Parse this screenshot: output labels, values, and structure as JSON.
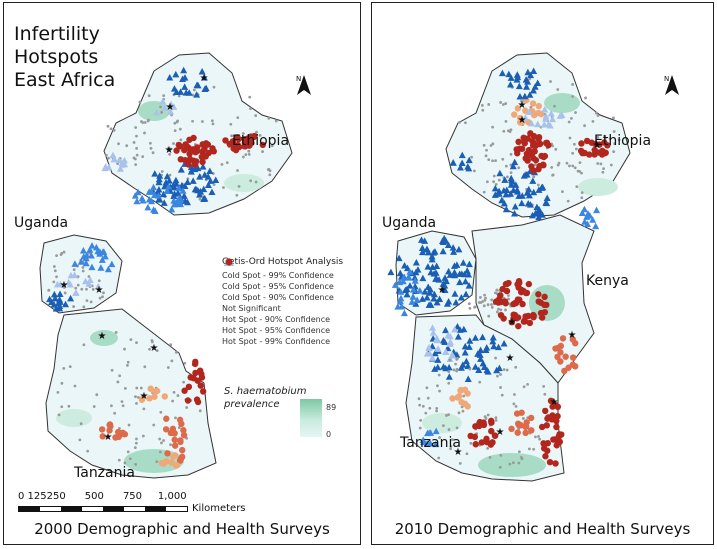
{
  "left_panel": {
    "title_lines": [
      "Infertility",
      "Hotspots",
      "East Africa"
    ],
    "caption": "2000 Demographic and Health Surveys",
    "countries": {
      "ethiopia": "Ethiopia",
      "uganda": "Uganda",
      "tanzania": "Tanzania"
    },
    "north": "N"
  },
  "right_panel": {
    "caption": "2010 Demographic and Health Surveys",
    "countries": {
      "ethiopia": "Ethiopia",
      "uganda": "Uganda",
      "kenya": "Kenya",
      "tanzania": "Tanzania"
    },
    "north": "N"
  },
  "legend": {
    "title": "Getis-Ord Hotspot Analysis",
    "items": [
      {
        "label": "Cold Spot - 99% Confidence",
        "shape": "triangle",
        "color": "#1a5fb4"
      },
      {
        "label": "Cold Spot - 95% Confidence",
        "shape": "triangle",
        "color": "#3a86e0"
      },
      {
        "label": "Cold Spot - 90% Confidence",
        "shape": "triangle",
        "color": "#a9c2ec"
      },
      {
        "label": "Not Significant",
        "shape": "dot",
        "color": "#9a9a9a"
      },
      {
        "label": "Hot Spot - 90% Confidence",
        "shape": "circle",
        "color": "#f0a878"
      },
      {
        "label": "Hot Spot - 95% Confidence",
        "shape": "circle",
        "color": "#dd6a4a"
      },
      {
        "label": "Hot Spot - 99% Confidence",
        "shape": "circle",
        "color": "#b3261e"
      }
    ],
    "prevalence_label_line1": "S. haematobium",
    "prevalence_label_line2": "prevalence",
    "prevalence_max": "89",
    "prevalence_min": "0"
  },
  "scale_bar": {
    "ticks": "0 125250      500      750     1,000",
    "unit": "Kilometers"
  },
  "colors": {
    "land": "#eaf6f7",
    "green": "#a9dcc6",
    "border": "#333333",
    "star": "#111111"
  }
}
